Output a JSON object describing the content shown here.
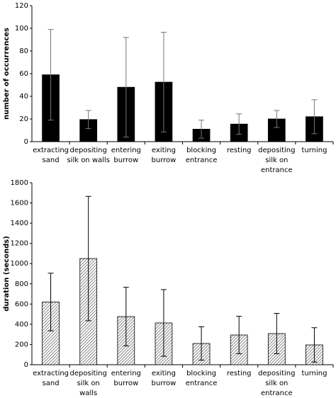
{
  "chart_data": [
    {
      "type": "bar",
      "y_label": "number of occurrences",
      "categories": [
        [
          "extracting",
          "sand"
        ],
        [
          "depositing",
          "silk on walls"
        ],
        [
          "entering",
          "burrow"
        ],
        [
          "exiting",
          "burrow"
        ],
        [
          "blocking",
          "entrance"
        ],
        [
          "resting"
        ],
        [
          "depositing",
          "silk on",
          "entrance"
        ],
        [
          "turning"
        ]
      ],
      "values": [
        59,
        19.5,
        48,
        52.5,
        11,
        15.5,
        20,
        22
      ],
      "errors": [
        40,
        8,
        44,
        44,
        8,
        9,
        7.5,
        15
      ],
      "color": "#000000",
      "pattern": "solid",
      "ylim": [
        0,
        120
      ],
      "yticks": [
        0,
        20,
        40,
        60,
        80,
        100,
        120
      ]
    },
    {
      "type": "bar",
      "y_label": "duration (seconds)",
      "categories": [
        [
          "extracting",
          "sand"
        ],
        [
          "depositing",
          "silk on",
          "walls"
        ],
        [
          "entering",
          "burrow"
        ],
        [
          "exiting",
          "burrow"
        ],
        [
          "blocking",
          "entrance"
        ],
        [
          "resting"
        ],
        [
          "depositing",
          "silk on",
          "entrance"
        ],
        [
          "turning"
        ]
      ],
      "values": [
        620,
        1050,
        476,
        413,
        210,
        294,
        308,
        196
      ],
      "errors": [
        285,
        615,
        290,
        330,
        165,
        185,
        200,
        170
      ],
      "color": "#888888",
      "pattern": "hatched",
      "ylim": [
        0,
        1800
      ],
      "yticks": [
        0,
        200,
        400,
        600,
        800,
        1000,
        1200,
        1400,
        1600,
        1800
      ]
    }
  ]
}
